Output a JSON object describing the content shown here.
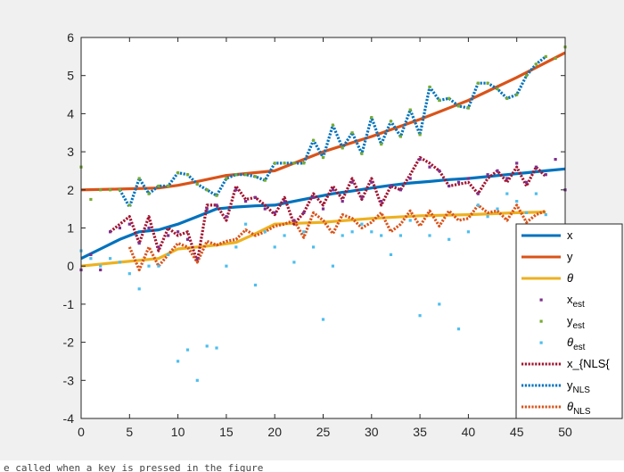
{
  "status_text": "e called when a key is pressed in the figure",
  "chart_data": {
    "type": "line",
    "title": "",
    "xlabel": "",
    "ylabel": "",
    "xlim": [
      0,
      50
    ],
    "ylim": [
      -4,
      6
    ],
    "x_ticks": [
      "0",
      "5",
      "10",
      "15",
      "20",
      "25",
      "30",
      "35",
      "40",
      "45",
      "50"
    ],
    "y_ticks": [
      "-4",
      "-3",
      "-2",
      "-1",
      "0",
      "1",
      "2",
      "3",
      "4",
      "5",
      "6"
    ],
    "grid": false,
    "legend_position": "right",
    "series": [
      {
        "key": "x",
        "color": "#0072BD",
        "style": "solid",
        "width": 3.2,
        "x": [
          0,
          2,
          4,
          6,
          8,
          10,
          12,
          14,
          16,
          18,
          20,
          22,
          24,
          26,
          28,
          30,
          32,
          34,
          36,
          38,
          40,
          42,
          44,
          46,
          48,
          50
        ],
        "y": [
          0.2,
          0.45,
          0.7,
          0.9,
          0.95,
          1.1,
          1.3,
          1.5,
          1.55,
          1.58,
          1.6,
          1.7,
          1.8,
          1.9,
          1.97,
          2.05,
          2.12,
          2.18,
          2.22,
          2.27,
          2.3,
          2.35,
          2.4,
          2.45,
          2.5,
          2.55
        ]
      },
      {
        "key": "y",
        "color": "#D95319",
        "style": "solid",
        "width": 3.2,
        "x": [
          0,
          4,
          8,
          10,
          12,
          15,
          20,
          25,
          30,
          35,
          40,
          45,
          50
        ],
        "y": [
          2.0,
          2.02,
          2.05,
          2.12,
          2.22,
          2.38,
          2.5,
          3.0,
          3.4,
          3.85,
          4.35,
          4.95,
          5.6
        ]
      },
      {
        "key": "theta",
        "color": "#EDB120",
        "style": "solid",
        "width": 3.2,
        "x": [
          0,
          4,
          8,
          10,
          14,
          16,
          18,
          20,
          25,
          30,
          35,
          40,
          45,
          48
        ],
        "y": [
          0.0,
          0.1,
          0.2,
          0.45,
          0.55,
          0.62,
          0.85,
          1.1,
          1.15,
          1.25,
          1.32,
          1.35,
          1.4,
          1.42
        ]
      },
      {
        "key": "x_nls",
        "color": "#A2142F",
        "style": "dotted",
        "width": 3.2,
        "x": [
          3,
          4,
          5,
          6,
          7,
          8,
          9,
          10,
          11,
          12,
          13,
          14,
          15,
          16,
          17,
          18,
          19,
          20,
          21,
          22,
          23,
          24,
          25,
          26,
          27,
          28,
          29,
          30,
          31,
          32,
          33,
          34,
          35,
          36,
          37,
          38,
          39,
          40,
          41,
          42,
          43,
          44,
          45,
          46,
          47,
          48
        ],
        "y": [
          0.9,
          1.1,
          1.3,
          0.6,
          1.3,
          0.4,
          1.0,
          0.8,
          0.9,
          0.1,
          1.6,
          1.6,
          1.2,
          2.1,
          1.75,
          1.8,
          1.6,
          1.35,
          1.8,
          1.1,
          1.4,
          1.9,
          1.6,
          2.1,
          1.75,
          2.3,
          1.75,
          2.3,
          1.6,
          2.1,
          2.0,
          2.4,
          2.85,
          2.7,
          2.5,
          2.1,
          2.15,
          2.2,
          1.9,
          2.3,
          2.5,
          2.2,
          2.6,
          2.1,
          2.6,
          2.35
        ]
      },
      {
        "key": "y_nls",
        "color": "#0072BD",
        "style": "dotted",
        "width": 3.2,
        "x": [
          4,
          5,
          6,
          7,
          8,
          9,
          10,
          11,
          12,
          13,
          14,
          15,
          16,
          17,
          18,
          19,
          20,
          21,
          22,
          23,
          24,
          25,
          26,
          27,
          28,
          29,
          30,
          31,
          32,
          33,
          34,
          35,
          36,
          37,
          38,
          39,
          40,
          41,
          42,
          43,
          44,
          45,
          46,
          47,
          48
        ],
        "y": [
          2.0,
          1.55,
          2.3,
          1.9,
          2.1,
          2.1,
          2.45,
          2.4,
          2.15,
          2.0,
          1.85,
          2.3,
          2.4,
          2.4,
          2.35,
          2.25,
          2.7,
          2.7,
          2.7,
          2.7,
          3.3,
          2.85,
          3.7,
          3.1,
          3.5,
          2.95,
          3.9,
          3.2,
          3.8,
          3.4,
          4.1,
          3.45,
          4.7,
          4.35,
          4.4,
          4.2,
          4.15,
          4.8,
          4.8,
          4.65,
          4.4,
          4.5,
          5.0,
          5.3,
          5.5
        ]
      },
      {
        "key": "theta_nls",
        "color": "#D95319",
        "style": "dotted",
        "width": 3.2,
        "x": [
          5,
          6,
          7,
          8,
          9,
          10,
          11,
          12,
          13,
          14,
          15,
          16,
          17,
          18,
          19,
          20,
          21,
          22,
          23,
          24,
          25,
          26,
          27,
          28,
          29,
          30,
          31,
          32,
          33,
          34,
          35,
          36,
          37,
          38,
          39,
          40,
          41,
          42,
          43,
          44,
          45,
          46,
          47,
          48
        ],
        "y": [
          0.5,
          -0.1,
          0.5,
          0.0,
          0.3,
          0.6,
          0.5,
          0.1,
          0.65,
          0.55,
          0.65,
          0.7,
          0.95,
          0.8,
          0.9,
          1.05,
          1.1,
          1.2,
          0.75,
          1.4,
          1.2,
          0.85,
          1.35,
          1.25,
          1.0,
          1.15,
          1.4,
          0.9,
          1.1,
          1.45,
          1.05,
          1.45,
          1.05,
          1.45,
          1.2,
          1.25,
          1.6,
          1.4,
          1.45,
          1.2,
          1.6,
          1.15,
          1.35,
          1.45
        ]
      }
    ],
    "scatter": [
      {
        "key": "x_est",
        "color": "#7E2F8E",
        "x": [
          0,
          1,
          2,
          3,
          4,
          5,
          6,
          7,
          8,
          9,
          10,
          11,
          12,
          13,
          14,
          15,
          16,
          17,
          18,
          19,
          20,
          21,
          22,
          23,
          24,
          25,
          26,
          27,
          28,
          29,
          30,
          31,
          32,
          33,
          34,
          35,
          36,
          37,
          38,
          39,
          40,
          41,
          42,
          43,
          44,
          45,
          46,
          47,
          48,
          49,
          50
        ],
        "y": [
          -0.1,
          0.3,
          -0.1,
          0.9,
          1.0,
          1.1,
          0.6,
          1.0,
          0.5,
          0.8,
          0.9,
          0.7,
          0.2,
          1.5,
          1.6,
          1.3,
          2.0,
          1.7,
          1.8,
          1.5,
          1.4,
          1.7,
          1.2,
          1.4,
          1.8,
          1.5,
          2.0,
          1.7,
          2.2,
          1.8,
          2.2,
          1.7,
          2.1,
          2.0,
          2.3,
          2.8,
          2.6,
          2.5,
          2.1,
          2.2,
          2.3,
          1.9,
          2.4,
          2.5,
          2.3,
          2.7,
          2.2,
          2.6,
          2.4,
          2.8,
          2.0
        ]
      },
      {
        "key": "y_est",
        "color": "#77AC30",
        "x": [
          0,
          1,
          2,
          3,
          4,
          5,
          6,
          7,
          8,
          9,
          10,
          11,
          12,
          13,
          14,
          15,
          16,
          17,
          18,
          19,
          20,
          21,
          22,
          23,
          24,
          25,
          26,
          27,
          28,
          29,
          30,
          31,
          32,
          33,
          34,
          35,
          36,
          37,
          38,
          39,
          40,
          41,
          42,
          43,
          44,
          45,
          46,
          47,
          48,
          49,
          50
        ],
        "y": [
          2.6,
          1.75,
          2.0,
          2.0,
          2.0,
          1.6,
          2.3,
          1.9,
          2.1,
          2.1,
          2.45,
          2.4,
          2.15,
          2.0,
          1.85,
          2.3,
          2.4,
          2.4,
          2.35,
          2.25,
          2.7,
          2.7,
          2.7,
          2.7,
          3.3,
          2.85,
          3.7,
          3.1,
          3.5,
          2.95,
          3.9,
          3.2,
          3.8,
          3.4,
          4.1,
          3.45,
          4.7,
          4.35,
          4.4,
          4.2,
          4.15,
          4.8,
          4.8,
          4.65,
          4.4,
          4.5,
          5.0,
          5.3,
          5.5,
          5.45,
          5.75
        ]
      },
      {
        "key": "theta_est",
        "color": "#4DBEEE",
        "x": [
          0,
          1,
          2,
          3,
          4,
          5,
          6,
          7,
          8,
          9,
          10,
          11,
          12,
          13,
          14,
          15,
          16,
          17,
          18,
          19,
          20,
          21,
          22,
          23,
          24,
          25,
          26,
          27,
          28,
          29,
          30,
          31,
          32,
          33,
          34,
          35,
          36,
          37,
          38,
          39,
          40,
          41,
          42,
          43,
          44,
          45,
          46,
          47,
          48
        ],
        "y": [
          0.4,
          0.2,
          0.0,
          0.2,
          0.1,
          -0.2,
          -0.6,
          0.0,
          0.0,
          0.3,
          -2.5,
          -2.2,
          -3.0,
          -2.1,
          -2.15,
          0.0,
          0.5,
          1.1,
          -0.5,
          0.9,
          0.5,
          0.8,
          0.1,
          0.9,
          0.5,
          -1.4,
          0.0,
          0.8,
          0.9,
          1.1,
          0.9,
          0.8,
          0.3,
          0.8,
          1.2,
          -1.3,
          0.8,
          -1.0,
          0.7,
          -1.65,
          0.9,
          1.6,
          1.3,
          1.5,
          1.9,
          1.7,
          1.4,
          1.9,
          1.35
        ]
      }
    ],
    "legend": [
      {
        "key": "x",
        "label": "x",
        "sub": "",
        "italic": false,
        "kind": "line",
        "color": "#0072BD",
        "style": "solid"
      },
      {
        "key": "y",
        "label": "y",
        "sub": "",
        "italic": false,
        "kind": "line",
        "color": "#D95319",
        "style": "solid"
      },
      {
        "key": "theta",
        "label": "θ",
        "sub": "",
        "italic": true,
        "kind": "line",
        "color": "#EDB120",
        "style": "solid"
      },
      {
        "key": "x_est",
        "label": "x",
        "sub": "est",
        "italic": false,
        "kind": "marker",
        "color": "#7E2F8E"
      },
      {
        "key": "y_est",
        "label": "y",
        "sub": "est",
        "italic": false,
        "kind": "marker",
        "color": "#77AC30"
      },
      {
        "key": "theta_est",
        "label": "θ",
        "sub": "est",
        "italic": true,
        "kind": "marker",
        "color": "#4DBEEE"
      },
      {
        "key": "x_nls",
        "label": "x_{NLS{",
        "sub": "",
        "italic": false,
        "kind": "line",
        "color": "#A2142F",
        "style": "dotted"
      },
      {
        "key": "y_nls",
        "label": "y",
        "sub": "NLS",
        "italic": false,
        "kind": "line",
        "color": "#0072BD",
        "style": "dotted"
      },
      {
        "key": "theta_nls",
        "label": "θ",
        "sub": "NLS",
        "italic": true,
        "kind": "line",
        "color": "#D95319",
        "style": "dotted"
      }
    ]
  }
}
